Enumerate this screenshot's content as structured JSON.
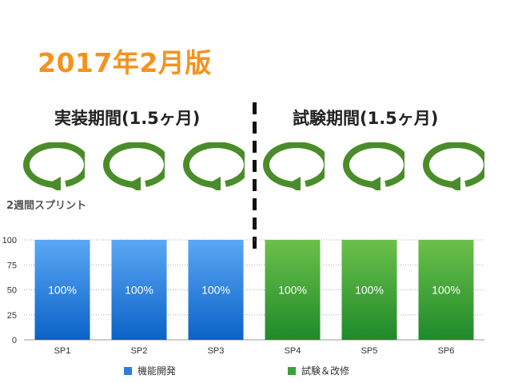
{
  "header": {
    "title": "2017年2月版",
    "phase_impl": "実装期間(1.5ヶ月)",
    "phase_test": "試験期間(1.5ヶ月)",
    "sprint_note": "2週間スプリント"
  },
  "colors": {
    "title": "#f5921e",
    "cycle": "#4a8c2a",
    "dev_bar": "#2b7fd9",
    "test_bar": "#3aa23a"
  },
  "cycles": [
    "cycle-icon",
    "cycle-icon",
    "cycle-icon",
    "cycle-icon",
    "cycle-icon",
    "cycle-icon"
  ],
  "chart_data": {
    "type": "bar",
    "categories": [
      "SP1",
      "SP2",
      "SP3",
      "SP4",
      "SP5",
      "SP6"
    ],
    "series": [
      {
        "name": "機能開発",
        "values": [
          100,
          100,
          100,
          null,
          null,
          null
        ]
      },
      {
        "name": "試験＆改修",
        "values": [
          null,
          null,
          null,
          100,
          100,
          100
        ]
      }
    ],
    "data_labels": [
      "100%",
      "100%",
      "100%",
      "100%",
      "100%",
      "100%"
    ],
    "yticks": [
      0,
      25,
      50,
      75,
      100
    ],
    "ylim": [
      0,
      100
    ],
    "grid": true,
    "legend_position": "bottom"
  }
}
